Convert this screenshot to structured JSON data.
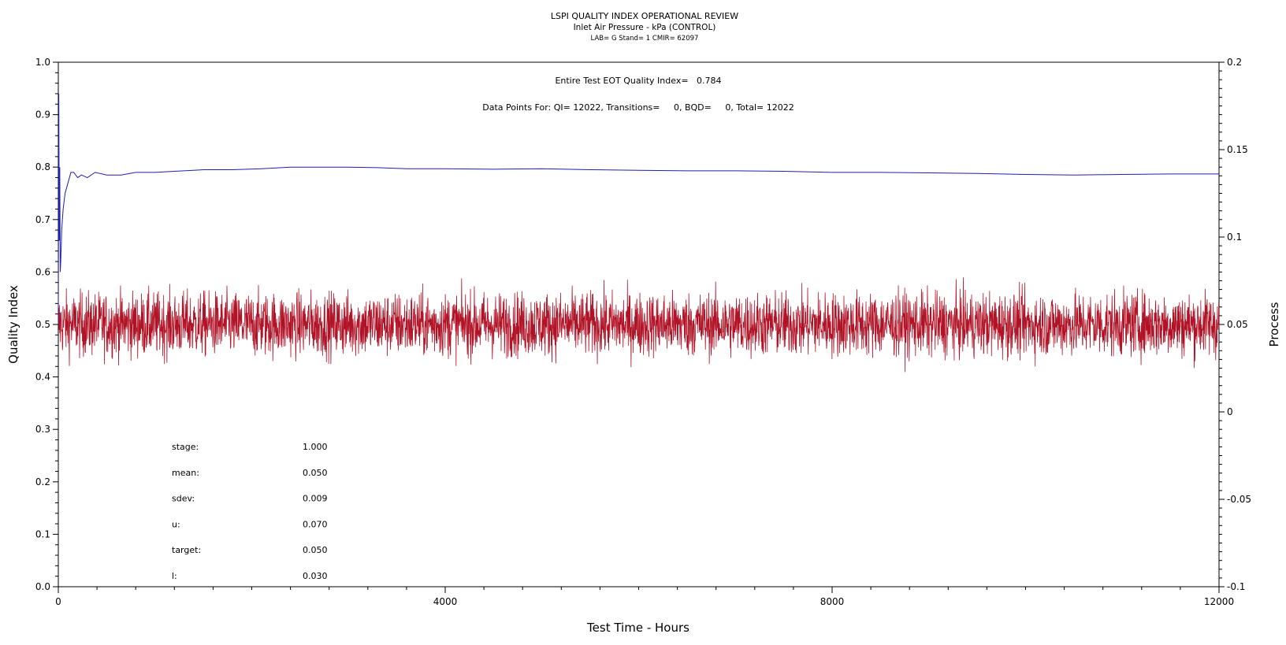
{
  "chart_data": {
    "type": "line",
    "title": "LSPI QUALITY INDEX OPERATIONAL REVIEW",
    "subtitle": "Inlet Air Pressure - kPa (CONTROL)",
    "subtitle2": "LAB= G Stand= 1 CMIR= 62097",
    "xlabel": "Test Time - Hours",
    "ylabel": "Quality Index",
    "y2label": "Process",
    "xlim": [
      0,
      12000
    ],
    "ylim": [
      0,
      1.0
    ],
    "y2lim": [
      -0.1,
      0.2
    ],
    "xticks": [
      "0",
      "4000",
      "8000",
      "12000"
    ],
    "yticks": [
      "0.0",
      "0.1",
      "0.2",
      "0.3",
      "0.4",
      "0.5",
      "0.6",
      "0.7",
      "0.8",
      "0.9",
      "1.0"
    ],
    "y2ticks": [
      "-0.1",
      "-0.05",
      "0",
      "0.05",
      "0.1",
      "0.15",
      "0.2"
    ],
    "annotations": {
      "eot": "Entire Test EOT Quality Index=   0.784",
      "points": "Data Points For: QI= 12022, Transitions=     0, BQD=     0, Total= 12022"
    },
    "stats": [
      {
        "label": "stage:",
        "value": "1.000"
      },
      {
        "label": "mean:",
        "value": "0.050"
      },
      {
        "label": "sdev:",
        "value": "0.009"
      },
      {
        "label": "u:",
        "value": "0.070"
      },
      {
        "label": "target:",
        "value": "0.050"
      },
      {
        "label": "l:",
        "value": "0.030"
      }
    ],
    "series": [
      {
        "name": "Quality Index",
        "axis": "left",
        "color": "#1f1fb4",
        "x": [
          0,
          5,
          10,
          15,
          20,
          25,
          35,
          50,
          70,
          100,
          130,
          160,
          200,
          240,
          300,
          380,
          500,
          650,
          800,
          1000,
          1200,
          1500,
          1800,
          2100,
          2400,
          2700,
          3000,
          3300,
          3600,
          4000,
          4500,
          5000,
          5500,
          6000,
          6500,
          7000,
          7500,
          8000,
          8500,
          9000,
          9500,
          10000,
          10500,
          11000,
          11500,
          12000
        ],
        "y": [
          0.5,
          0.94,
          0.66,
          0.8,
          0.6,
          0.62,
          0.68,
          0.72,
          0.75,
          0.77,
          0.79,
          0.79,
          0.78,
          0.785,
          0.78,
          0.79,
          0.785,
          0.785,
          0.79,
          0.79,
          0.792,
          0.795,
          0.795,
          0.797,
          0.8,
          0.8,
          0.8,
          0.799,
          0.797,
          0.797,
          0.796,
          0.797,
          0.795,
          0.794,
          0.793,
          0.793,
          0.792,
          0.79,
          0.79,
          0.789,
          0.788,
          0.786,
          0.785,
          0.786,
          0.787,
          0.787
        ]
      },
      {
        "name": "Process",
        "axis": "right",
        "color": "#b11226",
        "n_points": 12022,
        "mean": 0.05,
        "sdev": 0.009,
        "range": [
          0.022,
          0.078
        ]
      }
    ],
    "legend": "none",
    "grid": false
  }
}
